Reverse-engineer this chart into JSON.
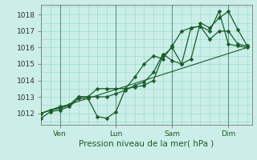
{
  "bg_color": "#cceee8",
  "grid_color": "#99ddcc",
  "line_color": "#1a5c2a",
  "title": "Pression niveau de la mer( hPa )",
  "ylabel_ticks": [
    1012,
    1013,
    1014,
    1015,
    1016,
    1017,
    1018
  ],
  "ylim": [
    1011.3,
    1018.6
  ],
  "xtick_labels": [
    "Ven",
    "Lun",
    "Sam",
    "Dim"
  ],
  "xtick_positions": [
    8,
    32,
    56,
    80
  ],
  "xlim": [
    0,
    90
  ],
  "series1_x": [
    0,
    4,
    8,
    12,
    16,
    20,
    24,
    28,
    32,
    36,
    40,
    44,
    48,
    52,
    56,
    60,
    64,
    68,
    72,
    76,
    80,
    84,
    88
  ],
  "series1_y": [
    1011.7,
    1012.1,
    1012.2,
    1012.4,
    1012.9,
    1012.9,
    1011.8,
    1011.7,
    1012.1,
    1013.5,
    1013.6,
    1013.7,
    1014.0,
    1015.5,
    1016.0,
    1015.0,
    1015.3,
    1017.5,
    1017.2,
    1017.8,
    1018.2,
    1017.1,
    1016.1
  ],
  "series2_x": [
    0,
    4,
    8,
    12,
    16,
    20,
    24,
    28,
    32,
    36,
    40,
    44,
    48,
    52,
    56,
    60,
    64,
    68,
    72,
    76,
    80,
    84,
    88
  ],
  "series2_y": [
    1012.0,
    1012.2,
    1012.3,
    1012.5,
    1013.0,
    1013.0,
    1013.0,
    1013.0,
    1013.2,
    1013.4,
    1013.7,
    1013.9,
    1014.5,
    1015.6,
    1015.2,
    1015.0,
    1017.2,
    1017.3,
    1017.0,
    1018.2,
    1016.2,
    1016.1,
    1016.0
  ],
  "series3_x": [
    0,
    4,
    8,
    12,
    16,
    20,
    24,
    28,
    32,
    36,
    40,
    44,
    48,
    52,
    56,
    60,
    64,
    68,
    72,
    76,
    80,
    84,
    88
  ],
  "series3_y": [
    1012.0,
    1012.2,
    1012.4,
    1012.5,
    1013.0,
    1013.0,
    1013.5,
    1013.5,
    1013.5,
    1013.5,
    1014.2,
    1015.0,
    1015.5,
    1015.3,
    1016.1,
    1017.0,
    1017.2,
    1017.3,
    1016.5,
    1017.0,
    1017.0,
    1016.2,
    1016.1
  ],
  "trend_x": [
    0,
    88
  ],
  "trend_y": [
    1012.0,
    1016.0
  ]
}
